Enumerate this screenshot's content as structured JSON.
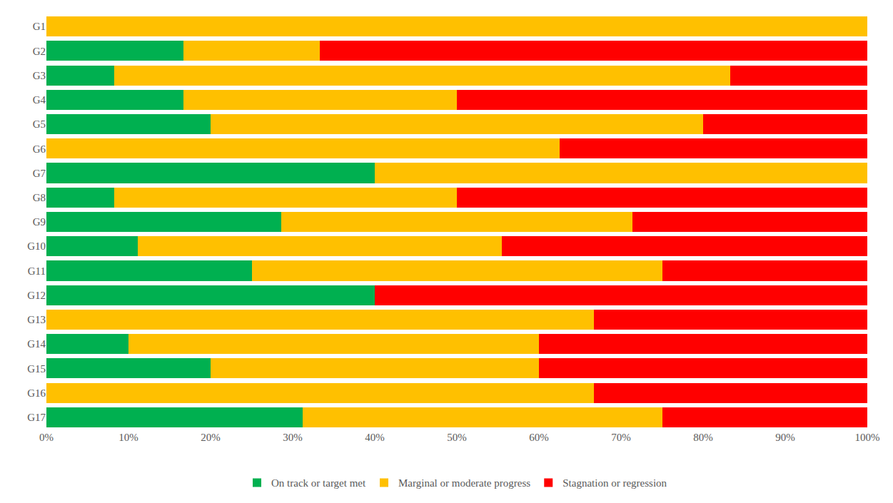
{
  "chart_data": {
    "type": "bar",
    "orientation": "horizontal",
    "stacked": true,
    "grid": false,
    "legend": "bottom",
    "categories": [
      "G1",
      "G2",
      "G3",
      "G4",
      "G5",
      "G6",
      "G7",
      "G8",
      "G9",
      "G10",
      "G11",
      "G12",
      "G13",
      "G14",
      "G15",
      "G16",
      "G17"
    ],
    "series": [
      {
        "name": "On track or target met",
        "color": "#00b050",
        "values": [
          0,
          16.7,
          8.3,
          16.7,
          20,
          0,
          40,
          8.3,
          28.6,
          11.1,
          25,
          40,
          0,
          10,
          20,
          0,
          31.25
        ]
      },
      {
        "name": "Marginal or moderate progress",
        "color": "#ffc000",
        "values": [
          100,
          16.6,
          75,
          33.3,
          60,
          62.5,
          60,
          41.7,
          42.8,
          44.4,
          50,
          0,
          66.7,
          50,
          40,
          66.7,
          43.75
        ]
      },
      {
        "name": "Stagnation or regression",
        "color": "#ff0000",
        "values": [
          0,
          66.7,
          16.7,
          50,
          20,
          37.5,
          0,
          50,
          28.6,
          44.5,
          25,
          60,
          33.3,
          40,
          40,
          33.3,
          25
        ]
      }
    ],
    "xlim": [
      0,
      100
    ],
    "xticks": [
      {
        "value": 0,
        "label": "0%"
      },
      {
        "value": 10,
        "label": "10%"
      },
      {
        "value": 20,
        "label": "20%"
      },
      {
        "value": 30,
        "label": "30%"
      },
      {
        "value": 40,
        "label": "40%"
      },
      {
        "value": 50,
        "label": "50%"
      },
      {
        "value": 60,
        "label": "60%"
      },
      {
        "value": 70,
        "label": "70%"
      },
      {
        "value": 80,
        "label": "80%"
      },
      {
        "value": 90,
        "label": "90%"
      },
      {
        "value": 100,
        "label": "100%"
      }
    ]
  }
}
